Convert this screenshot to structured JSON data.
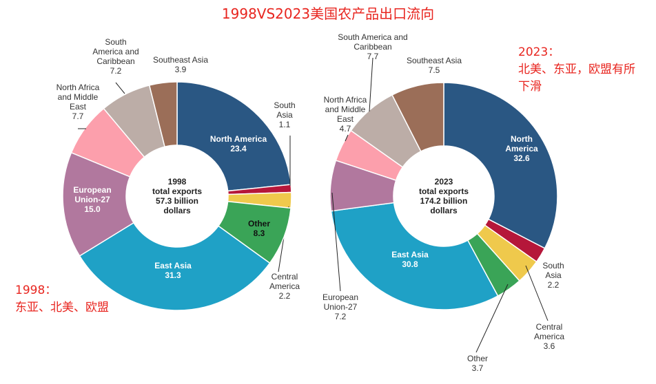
{
  "title": "1998VS2023美国农产品出口流向",
  "notes": [
    {
      "lines": [
        "1998：",
        "东亚、北美、欧盟"
      ]
    },
    {
      "lines": [
        "2023：",
        "北美、东亚，欧盟有所",
        "下滑"
      ]
    }
  ],
  "colors": {
    "North America": "#2a5783",
    "South Asia": "#b5173a",
    "Central America": "#efc94c",
    "Other": "#3aa457",
    "East Asia": "#1fa1c6",
    "European Union-27": "#b1789e",
    "North Africa and Middle East": "#fc9fac",
    "South America and Caribbean": "#bcada7",
    "Southeast Asia": "#9b6e58"
  },
  "chart_data": [
    {
      "type": "pie",
      "variant": "donut",
      "center_label": [
        "1998",
        "total exports",
        "57.3 billion",
        "dollars"
      ],
      "slices": [
        {
          "label": "North America",
          "label_lines": [
            "North America",
            "23.4"
          ],
          "value": 23.4,
          "label_position": "inside"
        },
        {
          "label": "South Asia",
          "label_lines": [
            "South",
            "Asia",
            "1.1"
          ],
          "value": 1.1,
          "label_position": "outside"
        },
        {
          "label": "Central America",
          "label_lines": [
            "Central",
            "America",
            "2.2"
          ],
          "value": 2.2,
          "label_position": "outside"
        },
        {
          "label": "Other",
          "label_lines": [
            "Other",
            "8.3"
          ],
          "value": 8.3,
          "label_position": "inside"
        },
        {
          "label": "East Asia",
          "label_lines": [
            "East Asia",
            "31.3"
          ],
          "value": 31.3,
          "label_position": "inside"
        },
        {
          "label": "European Union-27",
          "label_lines": [
            "European",
            "Union-27",
            "15.0"
          ],
          "value": 15.0,
          "label_position": "inside"
        },
        {
          "label": "North Africa and Middle East",
          "label_lines": [
            "North Africa",
            "and Middle",
            "East",
            "7.7"
          ],
          "value": 7.7,
          "label_position": "outside"
        },
        {
          "label": "South America and Caribbean",
          "label_lines": [
            "South",
            "America and",
            "Caribbean",
            "7.2"
          ],
          "value": 7.2,
          "label_position": "outside"
        },
        {
          "label": "Southeast Asia",
          "label_lines": [
            "Southeast Asia",
            "3.9"
          ],
          "value": 3.9,
          "label_position": "outside"
        }
      ]
    },
    {
      "type": "pie",
      "variant": "donut",
      "center_label": [
        "2023",
        "total exports",
        "174.2 billion",
        "dollars"
      ],
      "slices": [
        {
          "label": "North America",
          "label_lines": [
            "North",
            "America",
            "32.6"
          ],
          "value": 32.6,
          "label_position": "inside"
        },
        {
          "label": "South Asia",
          "label_lines": [
            "South",
            "Asia",
            "2.2"
          ],
          "value": 2.2,
          "label_position": "outside"
        },
        {
          "label": "Central America",
          "label_lines": [
            "Central",
            "America",
            "3.6"
          ],
          "value": 3.6,
          "label_position": "outside"
        },
        {
          "label": "Other",
          "label_lines": [
            "Other",
            "3.7"
          ],
          "value": 3.7,
          "label_position": "outside"
        },
        {
          "label": "East Asia",
          "label_lines": [
            "East Asia",
            "30.8"
          ],
          "value": 30.8,
          "label_position": "inside"
        },
        {
          "label": "European Union-27",
          "label_lines": [
            "European",
            "Union-27",
            "7.2"
          ],
          "value": 7.2,
          "label_position": "outside"
        },
        {
          "label": "North Africa and Middle East",
          "label_lines": [
            "North Africa",
            "and Middle",
            "East",
            "4.7"
          ],
          "value": 4.7,
          "label_position": "outside"
        },
        {
          "label": "South America and Caribbean",
          "label_lines": [
            "South America and",
            "Caribbean",
            "7.7"
          ],
          "value": 7.7,
          "label_position": "outside"
        },
        {
          "label": "Southeast Asia",
          "label_lines": [
            "Southeast Asia",
            "7.5"
          ],
          "value": 7.5,
          "label_position": "outside"
        }
      ]
    }
  ]
}
